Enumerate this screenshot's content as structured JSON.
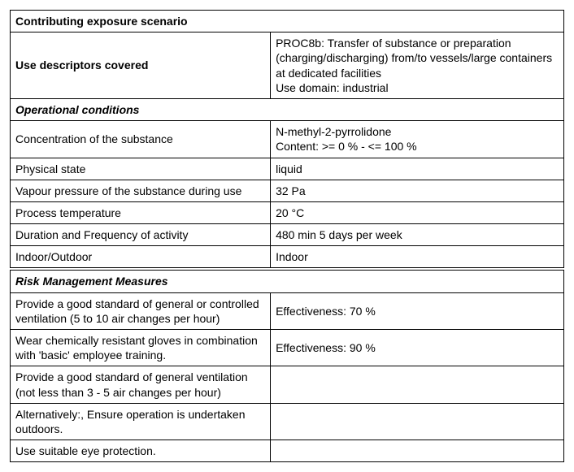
{
  "section1": {
    "title": "Contributing exposure scenario",
    "row1_left": "Use descriptors covered",
    "row1_right": "PROC8b: Transfer of substance or preparation (charging/discharging) from/to vessels/large containers at dedicated facilities\nUse domain: industrial"
  },
  "section2": {
    "title": "Operational conditions",
    "rows": [
      {
        "left": "Concentration of the substance",
        "right": "N-methyl-2-pyrrolidone\nContent: >= 0 % - <= 100 %"
      },
      {
        "left": "Physical state",
        "right": "liquid"
      },
      {
        "left": "Vapour pressure of the substance during use",
        "right": "32 Pa"
      },
      {
        "left": "Process temperature",
        "right": "20 °C"
      },
      {
        "left": "Duration and Frequency of activity",
        "right": "480 min 5 days per week"
      },
      {
        "left": "Indoor/Outdoor",
        "right": "Indoor"
      }
    ]
  },
  "section3": {
    "title": "Risk Management Measures",
    "rows": [
      {
        "left": "Provide a good standard of general or controlled ventilation (5 to 10 air changes per hour)",
        "right": "Effectiveness: 70 %"
      },
      {
        "left": "Wear chemically resistant gloves in combination with 'basic' employee training.",
        "right": "Effectiveness: 90 %"
      },
      {
        "left": "Provide a good standard of general ventilation (not less than 3 - 5 air changes per hour)",
        "right": ""
      },
      {
        "left": "Alternatively:, Ensure operation is undertaken outdoors.",
        "right": ""
      },
      {
        "left": "Use suitable eye protection.",
        "right": ""
      }
    ]
  }
}
